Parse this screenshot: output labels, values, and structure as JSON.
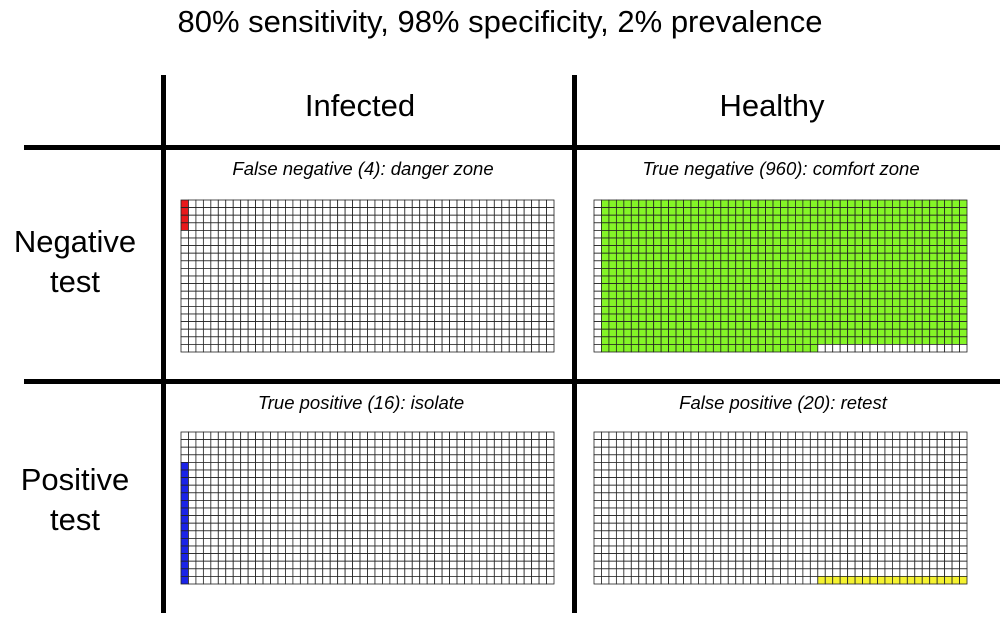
{
  "title": "80% sensitivity, 98% specificity, 2% prevalence",
  "columns": [
    "Infected",
    "Healthy"
  ],
  "rows": [
    {
      "line1": "Negative",
      "line2": "test"
    },
    {
      "line1": "Positive",
      "line2": "test"
    }
  ],
  "grid": {
    "cols": 50,
    "rows": 20
  },
  "quadrants": [
    {
      "id": "false-negative",
      "label": "False negative (4): danger zone",
      "count": 4,
      "color": "#e8191b",
      "cells": [
        {
          "col_from": 0,
          "col_to": 0,
          "row_from": 0,
          "row_to": 3
        }
      ]
    },
    {
      "id": "true-negative",
      "label": "True negative (960): comfort zone",
      "count": 960,
      "color": "#84f527",
      "cells": [
        {
          "col_from": 1,
          "col_to": 49,
          "row_from": 0,
          "row_to": 18
        },
        {
          "col_from": 1,
          "col_to": 29,
          "row_from": 19,
          "row_to": 19
        }
      ]
    },
    {
      "id": "true-positive",
      "label": "True positive (16): isolate",
      "count": 16,
      "color": "#1a23e8",
      "cells": [
        {
          "col_from": 0,
          "col_to": 0,
          "row_from": 4,
          "row_to": 19
        }
      ]
    },
    {
      "id": "false-positive",
      "label": "False positive (20): retest",
      "count": 20,
      "color": "#f5f230",
      "cells": [
        {
          "col_from": 30,
          "col_to": 49,
          "row_from": 19,
          "row_to": 19
        }
      ]
    }
  ]
}
